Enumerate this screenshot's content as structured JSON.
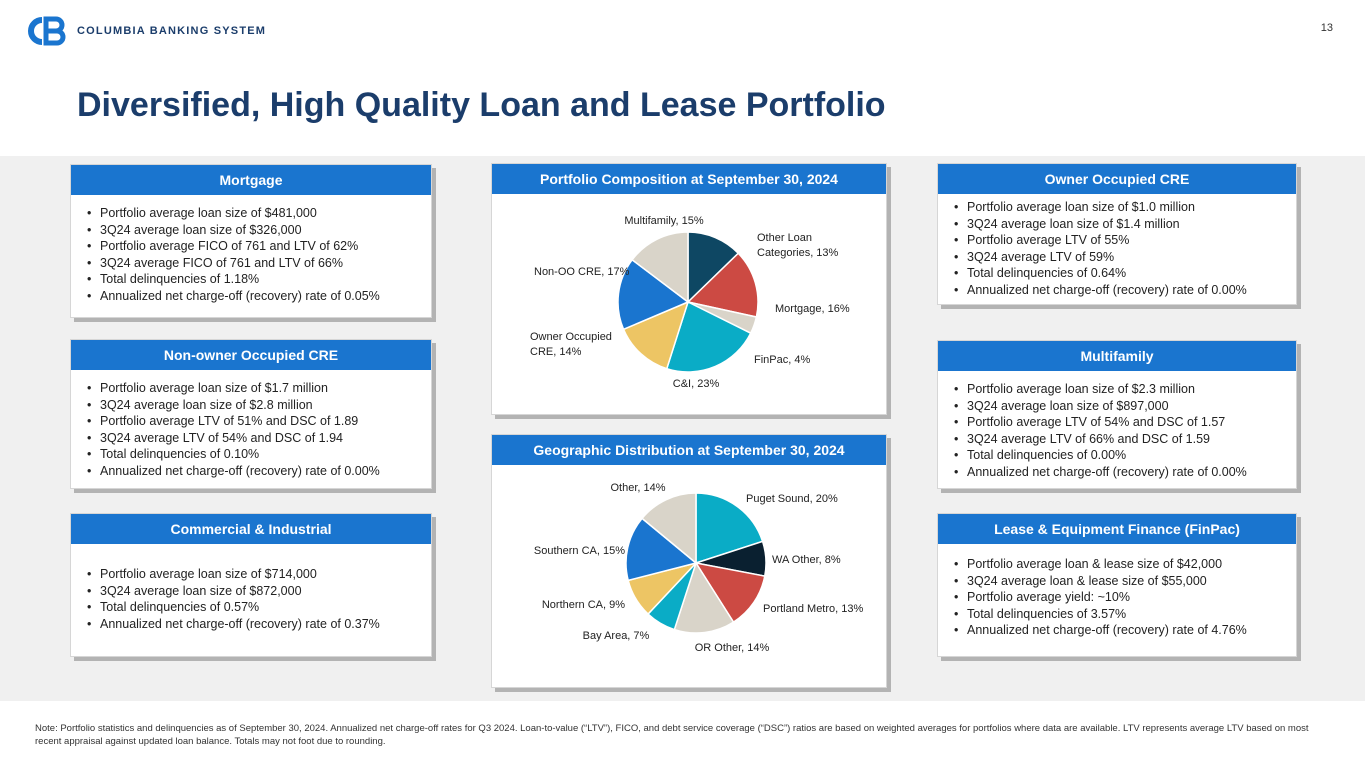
{
  "header": {
    "logo_text": "COLUMBIA BANKING SYSTEM",
    "page_number": "13",
    "title": "Diversified, High Quality Loan and Lease Portfolio"
  },
  "colors": {
    "accent_blue": "#1a75cf",
    "title_navy": "#1b3d6b"
  },
  "panels": {
    "mortgage": {
      "title": "Mortgage",
      "items": [
        "Portfolio average loan size of $481,000",
        "3Q24 average loan size of $326,000",
        "Portfolio average FICO of 761 and LTV of 62%",
        "3Q24 average FICO of 761 and LTV of 66%",
        "Total delinquencies of 1.18%",
        "Annualized net charge-off (recovery) rate of 0.05%"
      ]
    },
    "non_owner_cre": {
      "title": "Non-owner Occupied CRE",
      "items": [
        "Portfolio average loan size of $1.7 million",
        "3Q24 average loan size of $2.8 million",
        "Portfolio average LTV of 51% and DSC of 1.89",
        "3Q24 average LTV of 54% and DSC of 1.94",
        "Total delinquencies of 0.10%",
        "Annualized net charge-off (recovery) rate of 0.00%"
      ]
    },
    "commercial": {
      "title": "Commercial & Industrial",
      "items": [
        "Portfolio average loan size of $714,000",
        "3Q24 average loan size of $872,000",
        "Total delinquencies of 0.57%",
        "Annualized net charge-off (recovery) rate of 0.37%"
      ]
    },
    "owner_cre": {
      "title": "Owner Occupied CRE",
      "items": [
        "Portfolio average loan size of $1.0 million",
        "3Q24 average loan size of $1.4 million",
        "Portfolio average LTV of 55%",
        "3Q24 average LTV of 59%",
        "Total delinquencies of 0.64%",
        "Annualized net charge-off (recovery) rate of 0.00%"
      ]
    },
    "multifamily": {
      "title": "Multifamily",
      "items": [
        "Portfolio average loan size of $2.3 million",
        "3Q24 average loan size of $897,000",
        "Portfolio average LTV of 54% and DSC of 1.57",
        "3Q24 average LTV of 66% and DSC of 1.59",
        "Total delinquencies of 0.00%",
        "Annualized net charge-off (recovery) rate of 0.00%"
      ]
    },
    "lease": {
      "title": "Lease & Equipment Finance (FinPac)",
      "items": [
        "Portfolio average loan & lease size of $42,000",
        "3Q24 average loan & lease size of $55,000",
        "Portfolio average yield: ~10%",
        "Total delinquencies of 3.57%",
        "Annualized net charge-off (recovery) rate of 4.76%"
      ]
    }
  },
  "chart_data": [
    {
      "type": "pie",
      "title": "Portfolio Composition at September 30, 2024",
      "slices": [
        {
          "label": "Other Loan Categories, 13%",
          "value": 13,
          "color": "#0e4763"
        },
        {
          "label": "Mortgage, 16%",
          "value": 16,
          "color": "#cc4a43"
        },
        {
          "label": "FinPac, 4%",
          "value": 4,
          "color": "#d9d4c9"
        },
        {
          "label": "C&I, 23%",
          "value": 23,
          "color": "#0aacc6"
        },
        {
          "label": "Owner Occupied CRE, 14%",
          "value": 14,
          "color": "#edc564"
        },
        {
          "label": "Non-OO CRE, 17%",
          "value": 17,
          "color": "#1a75cf"
        },
        {
          "label": "Multifamily, 15%",
          "value": 15,
          "color": "#d9d4c9"
        }
      ]
    },
    {
      "type": "pie",
      "title": "Geographic Distribution at September 30, 2024",
      "slices": [
        {
          "label": "Puget Sound, 20%",
          "value": 20,
          "color": "#0aacc6"
        },
        {
          "label": "WA Other, 8%",
          "value": 8,
          "color": "#0a2030"
        },
        {
          "label": "Portland Metro, 13%",
          "value": 13,
          "color": "#cc4a43"
        },
        {
          "label": "OR Other, 14%",
          "value": 14,
          "color": "#d9d4c9"
        },
        {
          "label": "Bay Area, 7%",
          "value": 7,
          "color": "#0aacc6"
        },
        {
          "label": "Northern CA, 9%",
          "value": 9,
          "color": "#edc564"
        },
        {
          "label": "Southern CA, 15%",
          "value": 15,
          "color": "#1a75cf"
        },
        {
          "label": "Other, 14%",
          "value": 14,
          "color": "#d9d4c9"
        }
      ]
    }
  ],
  "footnote": "Note: Portfolio statistics and delinquencies as of September 30, 2024. Annualized net charge-off rates for Q3 2024. Loan-to-value (“LTV”), FICO, and debt service coverage (“DSC”) ratios are based on weighted averages for portfolios where data are available. LTV represents average LTV based on most recent appraisal against updated loan balance.  Totals may not foot due to rounding."
}
